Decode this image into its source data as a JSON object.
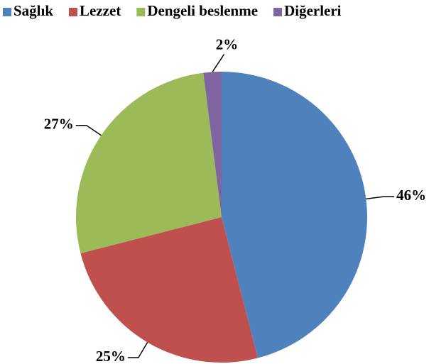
{
  "chart_data": {
    "type": "pie",
    "categories": [
      "Sağlık",
      "Lezzet",
      "Dengeli beslenme",
      "Diğerleri"
    ],
    "values": [
      46,
      25,
      27,
      2
    ],
    "value_labels": [
      "46%",
      "25%",
      "27%",
      "2%"
    ],
    "colors": [
      "#4f81bd",
      "#c0504d",
      "#9bbb59",
      "#8064a2"
    ],
    "legend": "top"
  }
}
